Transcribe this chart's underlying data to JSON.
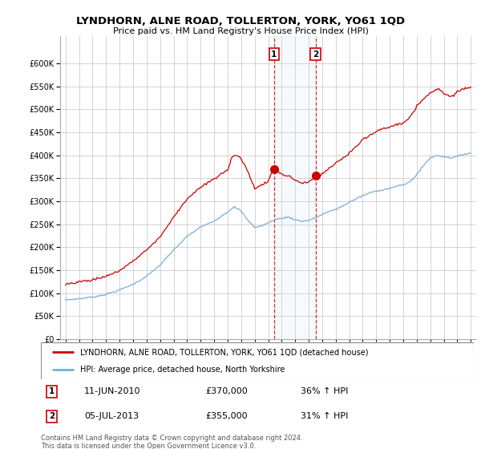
{
  "title": "LYNDHORN, ALNE ROAD, TOLLERTON, YORK, YO61 1QD",
  "subtitle": "Price paid vs. HM Land Registry's House Price Index (HPI)",
  "ylim": [
    0,
    660000
  ],
  "yticks": [
    0,
    50000,
    100000,
    150000,
    200000,
    250000,
    300000,
    350000,
    400000,
    450000,
    500000,
    550000,
    600000
  ],
  "background_color": "#ffffff",
  "plot_bg_color": "#ffffff",
  "grid_color": "#cccccc",
  "legend_line1": "LYNDHORN, ALNE ROAD, TOLLERTON, YORK, YO61 1QD (detached house)",
  "legend_line2": "HPI: Average price, detached house, North Yorkshire",
  "annotation1": {
    "label": "1",
    "date": "11-JUN-2010",
    "price": "£370,000",
    "hpi": "36% ↑ HPI"
  },
  "annotation2": {
    "label": "2",
    "date": "05-JUL-2013",
    "price": "£355,000",
    "hpi": "31% ↑ HPI"
  },
  "footnote": "Contains HM Land Registry data © Crown copyright and database right 2024.\nThis data is licensed under the Open Government Licence v3.0.",
  "red_color": "#cc0000",
  "blue_color": "#7bafd4",
  "sale_year1": 2010.44,
  "sale_value1": 370000,
  "sale_year2": 2013.51,
  "sale_value2": 355000,
  "xlim_start": 1994.6,
  "xlim_end": 2025.4
}
